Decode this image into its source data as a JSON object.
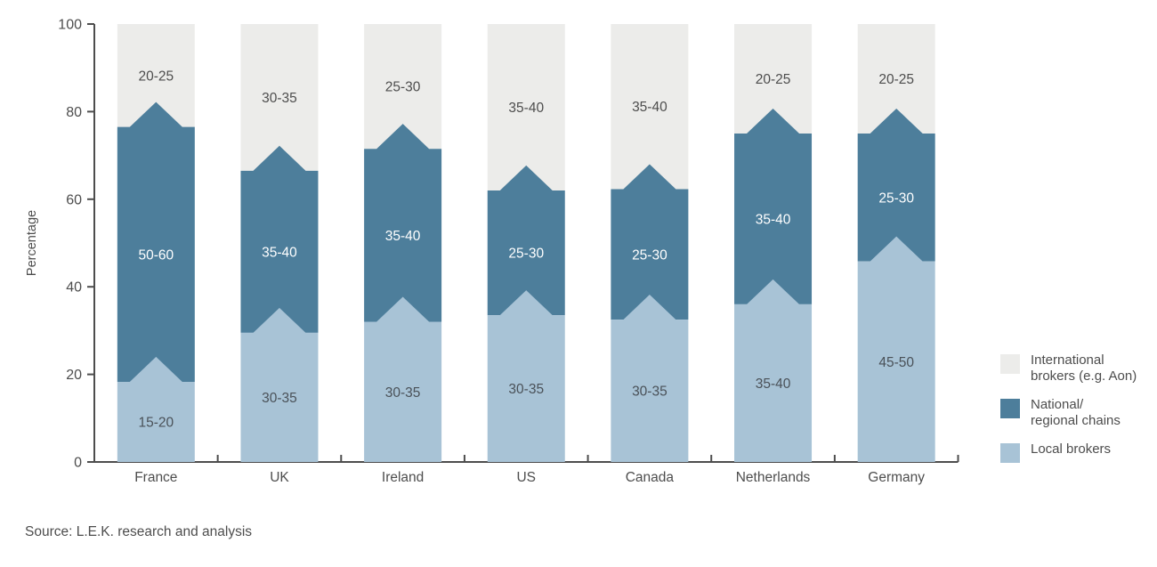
{
  "chart_data": {
    "type": "bar",
    "variant": "stacked-percentage-chevron",
    "title": "",
    "xlabel": "",
    "ylabel": "Percentage",
    "ylim": [
      0,
      100
    ],
    "yticks": [
      0,
      20,
      40,
      60,
      80,
      100
    ],
    "grid": false,
    "legend_position": "right",
    "categories": [
      "France",
      "UK",
      "Ireland",
      "US",
      "Canada",
      "Netherlands",
      "Germany"
    ],
    "series": [
      {
        "name": "Local brokers",
        "color": "#a8c3d6",
        "label_color": "#4a5158",
        "segment_labels": [
          "15-20",
          "30-35",
          "30-35",
          "30-35",
          "30-35",
          "35-40",
          "45-50"
        ],
        "cumulative_top_pct": [
          18.3,
          29.5,
          32,
          33.5,
          32.5,
          36,
          45.8
        ]
      },
      {
        "name": "National/regional chains",
        "color": "#4d7e9b",
        "label_color": "#ffffff",
        "segment_labels": [
          "50-60",
          "35-40",
          "35-40",
          "25-30",
          "25-30",
          "35-40",
          "25-30"
        ],
        "cumulative_top_pct": [
          76.5,
          66.5,
          71.5,
          62,
          62.3,
          75,
          75
        ]
      },
      {
        "name": "International brokers (e.g. Aon)",
        "color": "#ececea",
        "label_color": "#4d4d4d",
        "segment_labels": [
          "20-25",
          "30-35",
          "25-30",
          "35-40",
          "35-40",
          "20-25",
          "20-25"
        ],
        "cumulative_top_pct": [
          100,
          100,
          100,
          100,
          100,
          100,
          100
        ]
      }
    ],
    "chevron_rise_pct": 5.7
  },
  "legend": {
    "items": [
      {
        "line1": "International",
        "line2": "brokers (e.g. Aon)",
        "color": "#ececea"
      },
      {
        "line1": "National/",
        "line2": "regional chains",
        "color": "#4d7e9b"
      },
      {
        "line1": "Local brokers",
        "line2": "",
        "color": "#a8c3d6"
      }
    ]
  },
  "source_note": "Source: L.E.K. research and analysis",
  "colors": {
    "axis": "#4d4d4d",
    "text": "#4d4d4d",
    "background": "#ffffff"
  }
}
